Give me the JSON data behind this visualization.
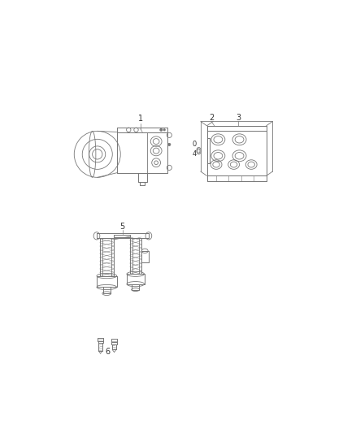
{
  "bg_color": "#ffffff",
  "lc": "#777777",
  "lc2": "#999999",
  "label_color": "#333333",
  "fig_width": 4.38,
  "fig_height": 5.33,
  "dpi": 100,
  "xlim": [
    0,
    438
  ],
  "ylim": [
    0,
    533
  ]
}
